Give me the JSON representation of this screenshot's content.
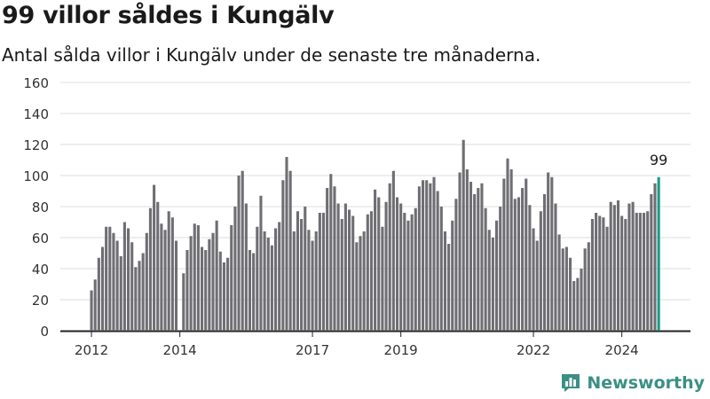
{
  "header": {
    "title": "99 villor såldes i Kungälv",
    "subtitle": "Antal sålda villor i Kungälv under de senaste tre månaderna."
  },
  "brand": {
    "name": "Newsworthy",
    "icon": "bar-chart-logo-icon",
    "color": "#3b8f86"
  },
  "colors": {
    "bar": "#6e6e73",
    "highlight": "#1a9a8c",
    "grid": "#dcdcdc",
    "axis": "#222222",
    "text": "#333333"
  },
  "chart_data": {
    "type": "bar",
    "title": "99 villor såldes i Kungälv",
    "subtitle": "Antal sålda villor i Kungälv under de senaste tre månaderna.",
    "ylim": [
      0,
      160
    ],
    "yticks": [
      0,
      20,
      40,
      60,
      80,
      100,
      120,
      140,
      160
    ],
    "grid": true,
    "xticks": [
      {
        "label": "2012",
        "index": 0
      },
      {
        "label": "2014",
        "index": 24
      },
      {
        "label": "2017",
        "index": 60
      },
      {
        "label": "2019",
        "index": 84
      },
      {
        "label": "2022",
        "index": 120
      },
      {
        "label": "2024",
        "index": 144
      }
    ],
    "highlight_label": "99",
    "values": [
      26,
      33,
      47,
      54,
      67,
      67,
      63,
      58,
      48,
      70,
      66,
      57,
      41,
      45,
      50,
      63,
      79,
      94,
      83,
      69,
      65,
      77,
      73,
      58,
      0,
      37,
      52,
      61,
      69,
      68,
      54,
      52,
      59,
      63,
      71,
      51,
      44,
      47,
      68,
      80,
      100,
      103,
      82,
      52,
      50,
      67,
      87,
      64,
      60,
      55,
      66,
      70,
      97,
      112,
      103,
      64,
      77,
      72,
      80,
      65,
      58,
      64,
      76,
      76,
      92,
      101,
      93,
      82,
      72,
      82,
      78,
      74,
      57,
      61,
      64,
      75,
      77,
      91,
      86,
      67,
      83,
      95,
      103,
      86,
      82,
      76,
      71,
      75,
      79,
      93,
      97,
      97,
      95,
      99,
      90,
      80,
      64,
      56,
      71,
      85,
      102,
      123,
      104,
      96,
      88,
      92,
      95,
      79,
      65,
      60,
      71,
      80,
      98,
      111,
      104,
      85,
      86,
      92,
      98,
      81,
      66,
      58,
      77,
      88,
      102,
      99,
      82,
      62,
      53,
      54,
      47,
      32,
      34,
      40,
      53,
      57,
      72,
      76,
      74,
      73,
      67,
      83,
      81,
      84,
      74,
      72,
      82,
      83,
      76,
      76,
      76,
      77,
      88,
      95,
      99
    ]
  }
}
